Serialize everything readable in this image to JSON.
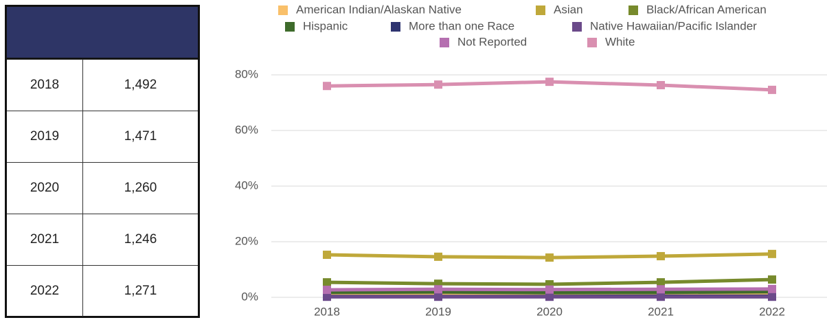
{
  "table": {
    "rows": [
      [
        "2018",
        "1,492"
      ],
      [
        "2019",
        "1,471"
      ],
      [
        "2020",
        "1,260"
      ],
      [
        "2021",
        "1,246"
      ],
      [
        "2022",
        "1,271"
      ]
    ]
  },
  "chart_data": {
    "type": "line",
    "categories": [
      "2018",
      "2019",
      "2020",
      "2021",
      "2022"
    ],
    "series": [
      {
        "name": "American Indian/Alaskan Native",
        "color": "#f9c06a",
        "values": [
          0.8,
          0.9,
          0.8,
          1.0,
          0.9
        ]
      },
      {
        "name": "Asian",
        "color": "#bfa83a",
        "values": [
          15.3,
          14.6,
          14.3,
          14.8,
          15.6
        ]
      },
      {
        "name": "Black/African American",
        "color": "#778a2c",
        "values": [
          5.4,
          4.9,
          4.7,
          5.4,
          6.4
        ]
      },
      {
        "name": "Hispanic",
        "color": "#3e6b2b",
        "values": [
          1.8,
          1.9,
          1.7,
          1.8,
          2.0
        ]
      },
      {
        "name": "More than one Race",
        "color": "#2e3470",
        "values": [
          0.3,
          0.3,
          0.3,
          0.4,
          0.4
        ]
      },
      {
        "name": "Native Hawaiian/Pacific Islander",
        "color": "#6b4a8a",
        "values": [
          0.2,
          0.2,
          0.2,
          0.2,
          0.2
        ]
      },
      {
        "name": "Not Reported",
        "color": "#b56fb0",
        "values": [
          2.7,
          2.9,
          2.8,
          2.9,
          3.0
        ]
      },
      {
        "name": "White",
        "color": "#d98fb0",
        "values": [
          76.0,
          76.5,
          77.5,
          76.3,
          74.6
        ]
      }
    ],
    "ylim": [
      0,
      80
    ],
    "yticks": [
      {
        "value": 0,
        "label": "0%"
      },
      {
        "value": 20,
        "label": "20%"
      },
      {
        "value": 40,
        "label": "40%"
      },
      {
        "value": 60,
        "label": "60%"
      },
      {
        "value": 80,
        "label": "80%"
      }
    ],
    "grid": true,
    "legend": "top"
  }
}
